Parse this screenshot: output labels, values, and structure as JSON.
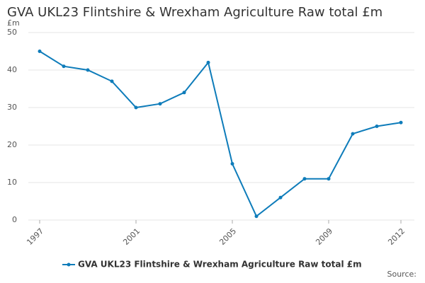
{
  "chart_data": {
    "type": "line",
    "title": "GVA UKL23 Flintshire & Wrexham Agriculture Raw total £m",
    "y_label": "£m",
    "source": "Source:",
    "x": [
      1997,
      1998,
      1999,
      2000,
      2001,
      2002,
      2003,
      2004,
      2005,
      2006,
      2007,
      2008,
      2009,
      2010,
      2011,
      2012
    ],
    "series": [
      {
        "name": "GVA UKL23 Flintshire & Wrexham Agriculture Raw total £m",
        "color": "#0e7cba",
        "values": [
          45,
          41,
          40,
          37,
          30,
          31,
          34,
          42,
          15,
          1,
          6,
          11,
          11,
          23,
          25,
          26
        ]
      }
    ],
    "xlim": [
      1997,
      2012
    ],
    "xticks": [
      1997,
      2001,
      2005,
      2009,
      2012
    ],
    "ylim": [
      0,
      50
    ],
    "yticks": [
      0,
      10,
      20,
      30,
      40,
      50
    ],
    "grid": true
  }
}
